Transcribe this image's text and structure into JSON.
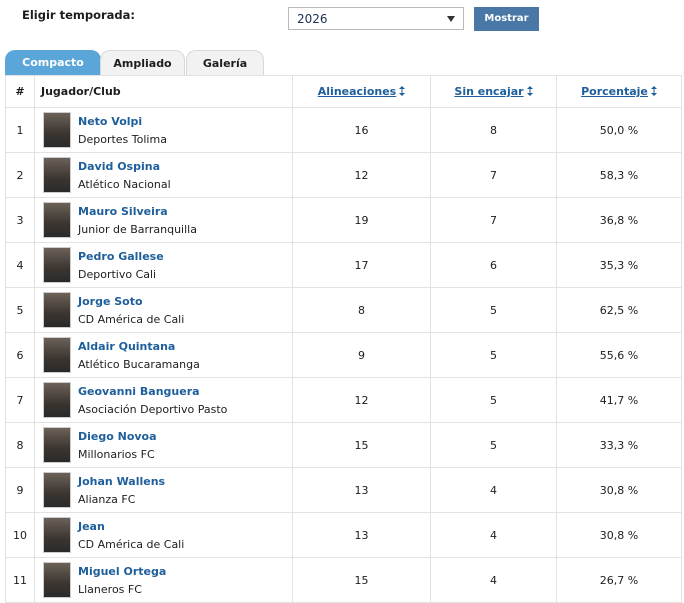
{
  "filter": {
    "label": "Eligir temporada:",
    "season": "2026",
    "button": "Mostrar"
  },
  "tabs": [
    "Compacto",
    "Ampliado",
    "Galería"
  ],
  "table": {
    "headers": [
      "#",
      "Jugador/Club",
      "Alineaciones",
      "Sin encajar",
      "Porcentaje"
    ],
    "rows": [
      {
        "rank": 1,
        "player": "Neto Volpi",
        "club": "Deportes Tolima",
        "apps": 16,
        "clean_sheets": 8,
        "percentage": "50,0 %"
      },
      {
        "rank": 2,
        "player": "David Ospina",
        "club": "Atlético Nacional",
        "apps": 12,
        "clean_sheets": 7,
        "percentage": "58,3 %"
      },
      {
        "rank": 3,
        "player": "Mauro Silveira",
        "club": "Junior de Barranquilla",
        "apps": 19,
        "clean_sheets": 7,
        "percentage": "36,8 %"
      },
      {
        "rank": 4,
        "player": "Pedro Gallese",
        "club": "Deportivo Cali",
        "apps": 17,
        "clean_sheets": 6,
        "percentage": "35,3 %"
      },
      {
        "rank": 5,
        "player": "Jorge Soto",
        "club": "CD América de Cali",
        "apps": 8,
        "clean_sheets": 5,
        "percentage": "62,5 %"
      },
      {
        "rank": 6,
        "player": "Aldair Quintana",
        "club": "Atlético Bucaramanga",
        "apps": 9,
        "clean_sheets": 5,
        "percentage": "55,6 %"
      },
      {
        "rank": 7,
        "player": "Geovanni Banguera",
        "club": "Asociación Deportivo Pasto",
        "apps": 12,
        "clean_sheets": 5,
        "percentage": "41,7 %"
      },
      {
        "rank": 8,
        "player": "Diego Novoa",
        "club": "Millonarios FC",
        "apps": 15,
        "clean_sheets": 5,
        "percentage": "33,3 %"
      },
      {
        "rank": 9,
        "player": "Johan Wallens",
        "club": "Alianza FC",
        "apps": 13,
        "clean_sheets": 4,
        "percentage": "30,8 %"
      },
      {
        "rank": 10,
        "player": "Jean",
        "club": "CD América de Cali",
        "apps": 13,
        "clean_sheets": 4,
        "percentage": "30,8 %"
      },
      {
        "rank": 11,
        "player": "Miguel Ortega",
        "club": "Llaneros FC",
        "apps": 15,
        "clean_sheets": 4,
        "percentage": "26,7 %"
      }
    ]
  }
}
